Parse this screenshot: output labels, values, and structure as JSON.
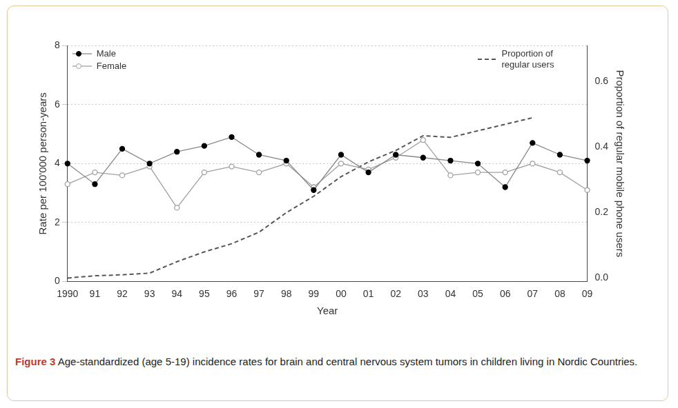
{
  "chart_data": {
    "type": "line",
    "x_label": "Year",
    "y_label": "Rate per 100'000 person-years",
    "y2_label": "Proportion of regular mobile phone users",
    "categories": [
      "1990",
      "91",
      "92",
      "93",
      "94",
      "95",
      "96",
      "97",
      "98",
      "99",
      "00",
      "01",
      "02",
      "03",
      "04",
      "05",
      "06",
      "07",
      "08",
      "09"
    ],
    "series": [
      {
        "name": "Male",
        "color": "#000000",
        "marker": "circle",
        "line_style": "solid",
        "values": [
          4.0,
          3.3,
          4.5,
          4.0,
          4.4,
          4.6,
          4.9,
          4.3,
          4.1,
          3.1,
          4.3,
          3.7,
          4.3,
          4.2,
          4.1,
          4.0,
          3.2,
          4.7,
          4.3,
          4.1
        ]
      },
      {
        "name": "Female",
        "color": "#a0a0a0",
        "marker": "open_circle",
        "line_style": "solid",
        "values": [
          3.3,
          3.7,
          3.6,
          3.9,
          2.5,
          3.7,
          3.9,
          3.7,
          4.0,
          3.2,
          4.0,
          3.8,
          4.2,
          4.8,
          3.6,
          3.7,
          3.7,
          4.0,
          3.7,
          3.1
        ]
      },
      {
        "name": "Proportion of regular users",
        "color": "#555555",
        "marker": "none",
        "line_style": "dashed",
        "axis": "y2",
        "values": [
          0.0,
          0.007,
          0.01,
          0.015,
          0.05,
          0.08,
          0.105,
          0.14,
          0.2,
          0.25,
          0.31,
          0.355,
          0.39,
          0.435,
          0.43,
          0.45,
          0.47,
          0.49,
          null,
          null
        ]
      }
    ],
    "ylim": [
      0,
      8
    ],
    "yticks": [
      0,
      2,
      4,
      6,
      8
    ],
    "y2lim": [
      -0.01,
      0.71
    ],
    "y2ticks": [
      {
        "value": 0,
        "label": "0.0"
      },
      0.2,
      0.4,
      0.6
    ],
    "grid": true,
    "legend": "upper left"
  },
  "caption": {
    "label": "Figure 3",
    "text": "Age-standardized (age 5-19) incidence rates for brain and central nervous system tumors in children living in Nordic Countries."
  }
}
